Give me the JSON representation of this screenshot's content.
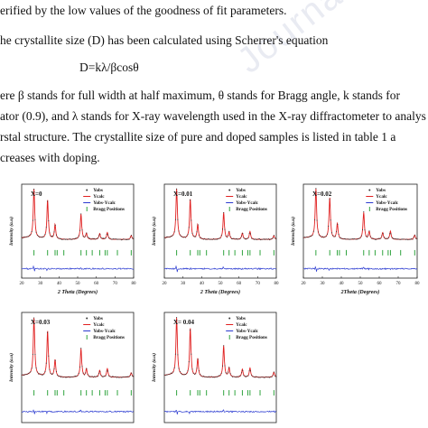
{
  "text": {
    "l1": "erified by the low values of the goodness of fit parameters.",
    "l2": "he crystallite size (D) has been calculated using Scherrer's equation",
    "eq": "D=kλ/βcosθ",
    "l3": "ere β stands for full width at half maximum, θ stands for Bragg angle, k stands for",
    "l4": "ator (0.9), and λ stands for X-ray wavelength used in the X-ray diffractometer to analys",
    "l5": "rstal structure. The crystallite size of pure and doped samples is listed in table 1 a",
    "l6": "creases with doping."
  },
  "watermark": "Journal Pre-proof",
  "colors": {
    "obs": "#333333",
    "calc": "#e02020",
    "diff": "#2a3ad0",
    "bragg": "#1a9a2a"
  },
  "chart_data": [
    {
      "type": "line",
      "label": "X=0",
      "legend": [
        "Yobs",
        "Ycalc",
        "Yobs-Ycalc",
        "Bragg Positions"
      ],
      "xlabel": "2 Theta (Degrees)",
      "ylabel": "Intensity (a.u)",
      "xticks": [
        "20",
        "30",
        "40",
        "50",
        "60",
        "70",
        "80"
      ],
      "xlim": [
        20,
        80
      ],
      "peaks": [
        [
          26.6,
          1.0
        ],
        [
          33.9,
          0.8
        ],
        [
          37.9,
          0.3
        ],
        [
          51.8,
          0.52
        ],
        [
          54.7,
          0.12
        ],
        [
          61.8,
          0.12
        ],
        [
          65.9,
          0.14
        ],
        [
          78.7,
          0.08
        ]
      ],
      "bragg": [
        26.6,
        33.9,
        37.9,
        39.0,
        42.6,
        51.8,
        54.7,
        57.8,
        61.8,
        64.7,
        65.9,
        71.3,
        78.7
      ]
    },
    {
      "type": "line",
      "label": "X=0.01",
      "legend": [
        "Yobs",
        "Ycalc",
        "Yobs-Ycalc",
        "Bragg Positions"
      ],
      "xlabel": "2 Theta (Degrees)",
      "ylabel": "Intensity (a.u)",
      "xticks": [
        "20",
        "30",
        "40",
        "50",
        "60",
        "70",
        "80"
      ],
      "xlim": [
        20,
        80
      ],
      "peaks": [
        [
          26.6,
          1.0
        ],
        [
          33.9,
          0.82
        ],
        [
          37.9,
          0.3
        ],
        [
          51.8,
          0.55
        ],
        [
          54.7,
          0.15
        ],
        [
          61.8,
          0.13
        ],
        [
          65.9,
          0.16
        ],
        [
          78.7,
          0.08
        ]
      ],
      "bragg": [
        26.6,
        33.9,
        37.9,
        39.0,
        42.6,
        51.8,
        54.7,
        57.8,
        61.8,
        64.7,
        65.9,
        71.3,
        78.7
      ]
    },
    {
      "type": "line",
      "label": "X=0.02",
      "legend": [
        "Yobs",
        "Ycalc",
        "Yobs-Ycalc",
        "Bragg Positions"
      ],
      "xlabel": "2Theta (Degrees)",
      "ylabel": "Intensity (a.u)",
      "xticks": [
        "20",
        "30",
        "40",
        "50",
        "60",
        "70",
        "80"
      ],
      "xlim": [
        20,
        80
      ],
      "peaks": [
        [
          26.6,
          1.0
        ],
        [
          33.9,
          0.85
        ],
        [
          37.9,
          0.32
        ],
        [
          51.8,
          0.55
        ],
        [
          54.7,
          0.16
        ],
        [
          61.8,
          0.14
        ],
        [
          65.9,
          0.17
        ],
        [
          78.7,
          0.09
        ]
      ],
      "bragg": [
        26.6,
        33.9,
        37.9,
        39.0,
        42.6,
        51.8,
        54.7,
        57.8,
        61.8,
        64.7,
        65.9,
        71.3,
        78.7
      ]
    },
    {
      "type": "line",
      "label": "X=0.03",
      "legend": [
        "Yobs",
        "Ycalc",
        "Yobs-Ycalc",
        "Bragg Positions"
      ],
      "xlabel": "",
      "ylabel": "Intensity (a.u)",
      "xticks": [],
      "xlim": [
        20,
        80
      ],
      "peaks": [
        [
          26.6,
          1.0
        ],
        [
          33.9,
          0.8
        ],
        [
          37.9,
          0.3
        ],
        [
          51.8,
          0.5
        ],
        [
          54.7,
          0.14
        ],
        [
          61.8,
          0.12
        ],
        [
          65.9,
          0.15
        ],
        [
          78.7,
          0.08
        ]
      ],
      "bragg": [
        26.6,
        33.9,
        37.9,
        39.0,
        42.6,
        51.8,
        54.7,
        57.8,
        61.8,
        64.7,
        65.9,
        71.3,
        78.7
      ]
    },
    {
      "type": "line",
      "label": "X= 0.04",
      "legend": [
        "Yobs",
        "Ycalc",
        "Yobs-Ycalc",
        "Bragg Positions"
      ],
      "xlabel": "",
      "ylabel": "Intensity (a.u)",
      "xticks": [],
      "xlim": [
        20,
        80
      ],
      "peaks": [
        [
          26.6,
          1.0
        ],
        [
          33.9,
          0.85
        ],
        [
          37.9,
          0.32
        ],
        [
          51.8,
          0.55
        ],
        [
          54.7,
          0.16
        ],
        [
          61.8,
          0.14
        ],
        [
          65.9,
          0.16
        ],
        [
          78.7,
          0.09
        ]
      ],
      "bragg": [
        26.6,
        33.9,
        37.9,
        39.0,
        42.6,
        51.8,
        54.7,
        57.8,
        61.8,
        64.7,
        65.9,
        71.3,
        78.7
      ]
    }
  ]
}
